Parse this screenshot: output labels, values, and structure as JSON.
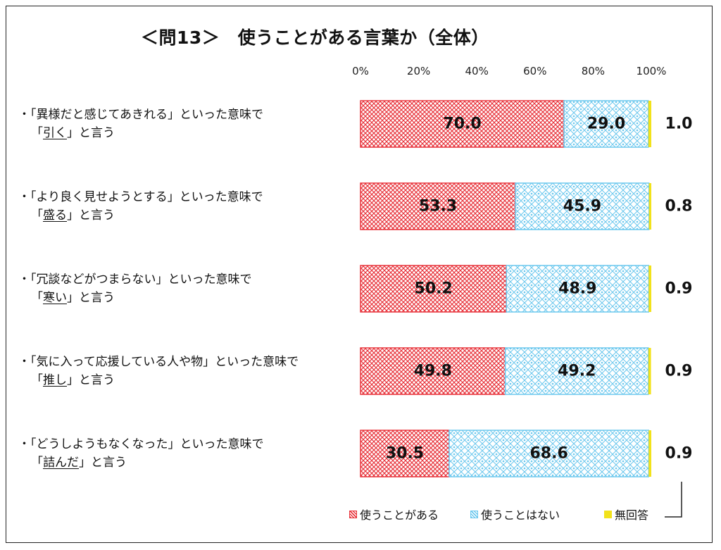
{
  "chart_data": {
    "type": "bar",
    "orientation": "horizontal",
    "stacked": true,
    "title": "＜問13＞　使うことがある言葉か（全体）",
    "xlim": [
      0,
      100
    ],
    "x_ticks": [
      "0%",
      "20%",
      "40%",
      "60%",
      "80%",
      "100%"
    ],
    "categories": [
      {
        "prefix": "・「",
        "line1_rest": "異様だと感じてあきれる」といった意味で",
        "open": "「",
        "word": "引く",
        "close": "」と言う"
      },
      {
        "prefix": "・「",
        "line1_rest": "より良く見せようとする」といった意味で",
        "open": "「",
        "word": "盛る",
        "close": "」と言う"
      },
      {
        "prefix": "・「",
        "line1_rest": "冗談などがつまらない」といった意味で",
        "open": "「",
        "word": "寒い",
        "close": "」と言う"
      },
      {
        "prefix": "・「",
        "line1_rest": "気に入って応援している人や物」といった意味で",
        "open": "「",
        "word": "推し",
        "close": "」と言う"
      },
      {
        "prefix": "・「",
        "line1_rest": "どうしようもなくなった」といった意味で",
        "open": "「",
        "word": "詰んだ",
        "close": "」と言う"
      }
    ],
    "series": [
      {
        "name": "使うことがある",
        "values": [
          70.0,
          53.3,
          50.2,
          49.8,
          30.5
        ],
        "labels": [
          "70.0",
          "53.3",
          "50.2",
          "49.8",
          "30.5"
        ],
        "color": "#e8343c",
        "pattern": "crosshatch"
      },
      {
        "name": "使うことはない",
        "values": [
          29.0,
          45.9,
          48.9,
          49.2,
          68.6
        ],
        "labels": [
          "29.0",
          "45.9",
          "48.9",
          "49.2",
          "68.6"
        ],
        "color": "#6cc8ee",
        "pattern": "lattice"
      },
      {
        "name": "無回答",
        "values": [
          1.0,
          0.8,
          0.9,
          0.9,
          0.9
        ],
        "labels": [
          "1.0",
          "0.8",
          "0.9",
          "0.9",
          "0.9"
        ],
        "color": "#f2e21a",
        "pattern": "solid"
      }
    ],
    "legend_position": "bottom-right",
    "grid": false
  }
}
